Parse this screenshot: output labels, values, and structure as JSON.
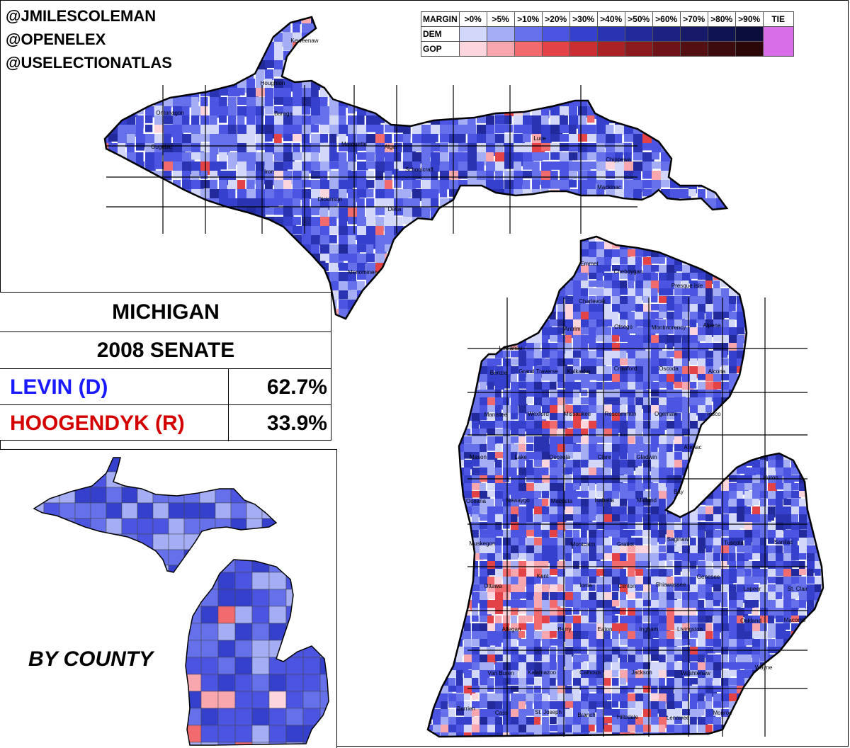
{
  "credits": [
    "@JMILESCOLEMAN",
    "@OPENELEX",
    "@USELECTIONATLAS"
  ],
  "legend": {
    "header_label": "MARGIN",
    "margins": [
      ">0%",
      ">5%",
      ">10%",
      ">20%",
      ">30%",
      ">40%",
      ">50%",
      ">60%",
      ">70%",
      ">80%",
      ">90%"
    ],
    "tie_label": "TIE",
    "dem_label": "DEM",
    "gop_label": "GOP",
    "dem_colors": [
      "#d3d8fb",
      "#a5aef5",
      "#6570ea",
      "#4c55e2",
      "#3540cc",
      "#2a34b3",
      "#22299a",
      "#1c2182",
      "#161a69",
      "#101352",
      "#0b0d3c"
    ],
    "gop_colors": [
      "#fcd6dc",
      "#f8a7ae",
      "#f06a6e",
      "#e34247",
      "#c92e33",
      "#a92226",
      "#8a1a1e",
      "#6e1418",
      "#540f12",
      "#3d0b0d",
      "#2b0708"
    ],
    "tie_color": "#d86ee8"
  },
  "results": {
    "state": "MICHIGAN",
    "race": "2008 SENATE",
    "candidates": [
      {
        "name": "LEVIN (D)",
        "pct": "62.7%",
        "color": "#1a1aff"
      },
      {
        "name": "HOOGENDYK (R)",
        "pct": "33.9%",
        "color": "#d40000"
      }
    ]
  },
  "inset_label": "BY COUNTY",
  "county_labels": [
    "Keweenaw",
    "Houghton",
    "Ontonagon",
    "Baraga",
    "Gogebic",
    "Marquette",
    "Alger",
    "Luce",
    "Chippewa",
    "Iron",
    "Dickinson",
    "Schoolcraft",
    "Mackinac",
    "Delta",
    "Menominee",
    "Emmet",
    "Cheboygan",
    "Presque Isle",
    "Charlevoix",
    "Antrim",
    "Otsego",
    "Montmorency",
    "Alpena",
    "Leelanau",
    "Benzie",
    "Grand Traverse",
    "Kalkaska",
    "Crawford",
    "Oscoda",
    "Alcona",
    "Manistee",
    "Wexford",
    "Missaukee",
    "Roscommon",
    "Ogemaw",
    "Iosco",
    "Mason",
    "Lake",
    "Osceola",
    "Clare",
    "Gladwin",
    "Arenac",
    "Oceana",
    "Newaygo",
    "Mecosta",
    "Isabella",
    "Midland",
    "Bay",
    "Huron",
    "Muskegon",
    "Montcalm",
    "Gratiot",
    "Saginaw",
    "Tuscola",
    "Sanilac",
    "Ottawa",
    "Kent",
    "Ionia",
    "Clinton",
    "Shiawassee",
    "Genesee",
    "Lapeer",
    "St. Clair",
    "Allegan",
    "Barry",
    "Eaton",
    "Ingham",
    "Livingston",
    "Oakland",
    "Macomb",
    "Van Buren",
    "Kalamazoo",
    "Calhoun",
    "Jackson",
    "Washtenaw",
    "Wayne",
    "Berrien",
    "Cass",
    "St. Joseph",
    "Branch",
    "Hillsdale",
    "Lenawee",
    "Monroe"
  ]
}
